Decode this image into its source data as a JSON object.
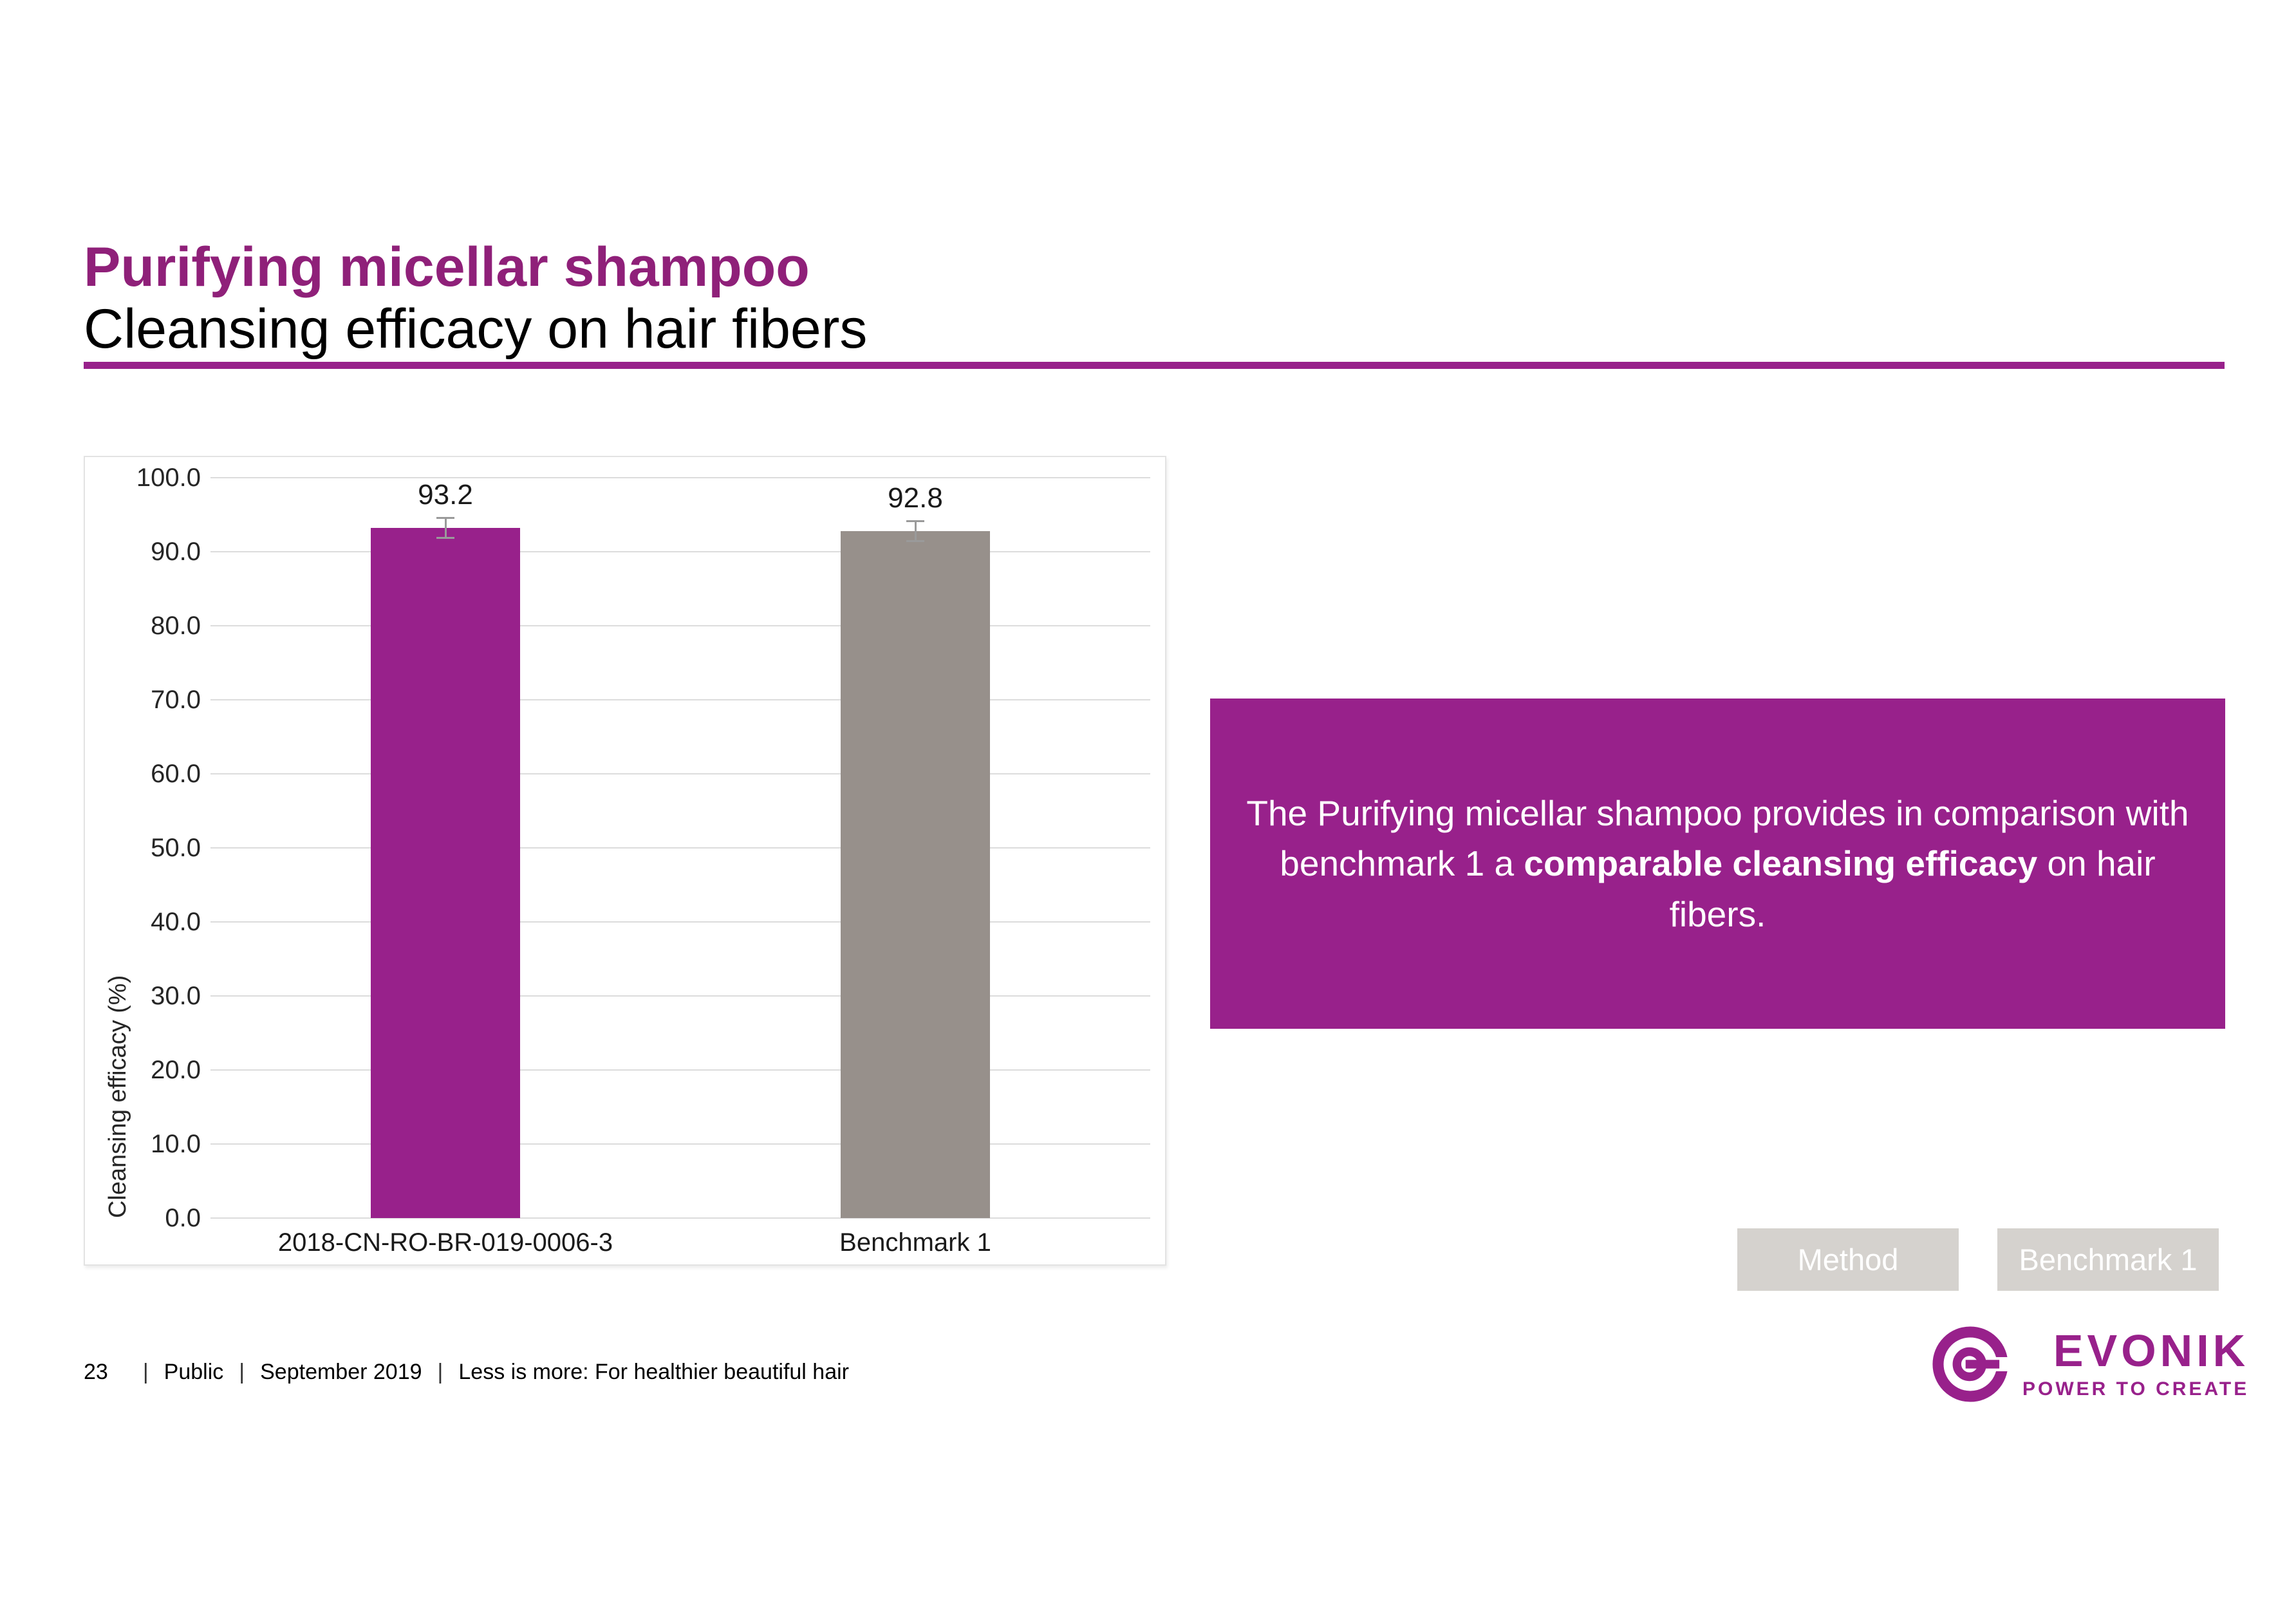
{
  "slide": {
    "title": "Purifying micellar shampoo",
    "subtitle": "Cleansing efficacy on hair fibers"
  },
  "colors": {
    "brand_purple": "#98218B",
    "bar_gray": "#97908B",
    "button_gray": "#D5D2CE",
    "gridline_gray": "#DCDCDC",
    "error_bar_gray": "#9A9A9A"
  },
  "chart_data": {
    "type": "bar",
    "categories": [
      "2018-CN-RO-BR-019-0006-3",
      "Benchmark 1"
    ],
    "values": [
      93.2,
      92.8
    ],
    "data_labels": [
      "93.2",
      "92.8"
    ],
    "errors": [
      0.6,
      0.6
    ],
    "bar_colors": [
      "#98218B",
      "#97908B"
    ],
    "title": "",
    "xlabel": "",
    "ylabel": "Cleansing efficacy (%)",
    "ylim": [
      0,
      100
    ],
    "yticks": [
      0,
      10,
      20,
      30,
      40,
      50,
      60,
      70,
      80,
      90,
      100
    ],
    "ytick_format_decimals": 1,
    "grid": true,
    "legend": false
  },
  "message": {
    "pre": "The Purifying micellar shampoo provides in comparison with benchmark 1 a ",
    "bold": "comparable cleansing efficacy",
    "post": " on hair fibers."
  },
  "buttons": {
    "method": "Method",
    "benchmark": "Benchmark 1"
  },
  "footer": {
    "page_number": "23",
    "separator": "|",
    "classification": "Public",
    "date": "September 2019",
    "tagline": "Less is more: For healthier beautiful hair"
  },
  "logo": {
    "wordmark": "EVONIK",
    "tagline": "POWER TO CREATE"
  }
}
